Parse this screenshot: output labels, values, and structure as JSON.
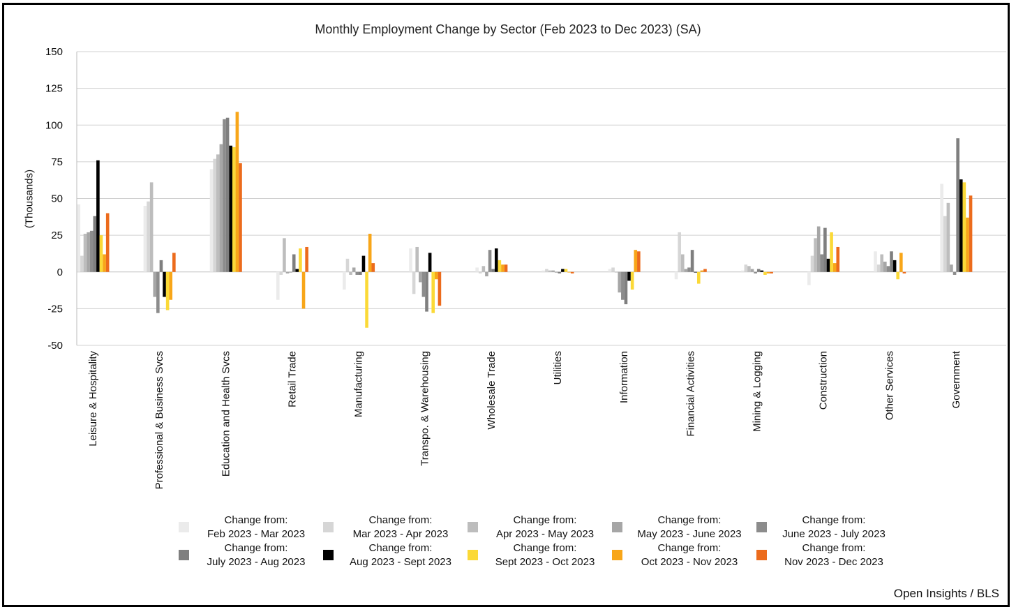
{
  "source": "Open Insights / BLS",
  "chart_data": {
    "type": "bar",
    "title": "Monthly Employment Change by Sector (Feb 2023 to Dec 2023) (SA)",
    "xlabel": "",
    "ylabel": "(Thousands)",
    "ylim": [
      -50,
      150
    ],
    "yticks": [
      150,
      125,
      100,
      75,
      50,
      25,
      0,
      -25,
      -50
    ],
    "grid": true,
    "legend_position": "bottom",
    "categories": [
      "Leisure & Hospitality",
      "Professional & Business Svcs",
      "Education and Health Svcs",
      "Retail Trade",
      "Manufacturing",
      "Transpo. & Warehousing",
      "Wholesale Trade",
      "Utilities",
      "Information",
      "Financial Activities",
      "Mining & Logging",
      "Construction",
      "Other Services",
      "Government"
    ],
    "series": [
      {
        "name": "Change from: Feb 2023 - Mar 2023",
        "color": "#ebebeb",
        "values": [
          46,
          45,
          70,
          -19,
          -12,
          16,
          3,
          1,
          2,
          -5,
          1,
          -9,
          14,
          60
        ]
      },
      {
        "name": "Change from: Mar 2023 - Apr 2023",
        "color": "#d6d6d6",
        "values": [
          11,
          48,
          77,
          -2,
          9,
          -15,
          -1,
          2,
          3,
          27,
          5,
          11,
          5,
          38
        ]
      },
      {
        "name": "Change from: Apr 2023 - May 2023",
        "color": "#bdbdbd",
        "values": [
          26,
          61,
          80,
          23,
          -2,
          17,
          4,
          1,
          0,
          12,
          4,
          23,
          12,
          47
        ]
      },
      {
        "name": "Change from: May 2023 - June 2023",
        "color": "#a6a6a6",
        "values": [
          27,
          -17,
          87,
          -1,
          3,
          -7,
          -3,
          1,
          -14,
          2,
          2,
          31,
          7,
          5
        ]
      },
      {
        "name": "Change from: June 2023 - July 2023",
        "color": "#8c8c8c",
        "values": [
          28,
          -28,
          104,
          0,
          -2,
          -17,
          15,
          0,
          -19,
          3,
          -1,
          12,
          4,
          -2
        ]
      },
      {
        "name": "Change from: July 2023 - Aug 2023",
        "color": "#7f7f7f",
        "values": [
          38,
          8,
          105,
          12,
          -2,
          -27,
          2,
          -1,
          -22,
          15,
          2,
          30,
          14,
          91
        ]
      },
      {
        "name": "Change from: Aug 2023 - Sept 2023",
        "color": "#000000",
        "values": [
          76,
          -17,
          86,
          2,
          11,
          13,
          16,
          2,
          -6,
          0,
          1,
          9,
          8,
          63
        ]
      },
      {
        "name": "Change from: Sept 2023 - Oct 2023",
        "color": "#fbd937",
        "values": [
          25,
          -26,
          85,
          16,
          -38,
          -28,
          8,
          2,
          -12,
          -8,
          -2,
          27,
          -5,
          61
        ]
      },
      {
        "name": "Change from: Oct 2023 - Nov 2023",
        "color": "#f8a619",
        "values": [
          12,
          -19,
          109,
          -25,
          26,
          -5,
          5,
          0,
          15,
          1,
          -1,
          6,
          13,
          37
        ]
      },
      {
        "name": "Change from: Nov 2023 - Dec 2023",
        "color": "#ec6b1c",
        "values": [
          40,
          13,
          74,
          17,
          6,
          -23,
          5,
          -1,
          14,
          2,
          -1,
          17,
          -1,
          52
        ]
      }
    ]
  }
}
